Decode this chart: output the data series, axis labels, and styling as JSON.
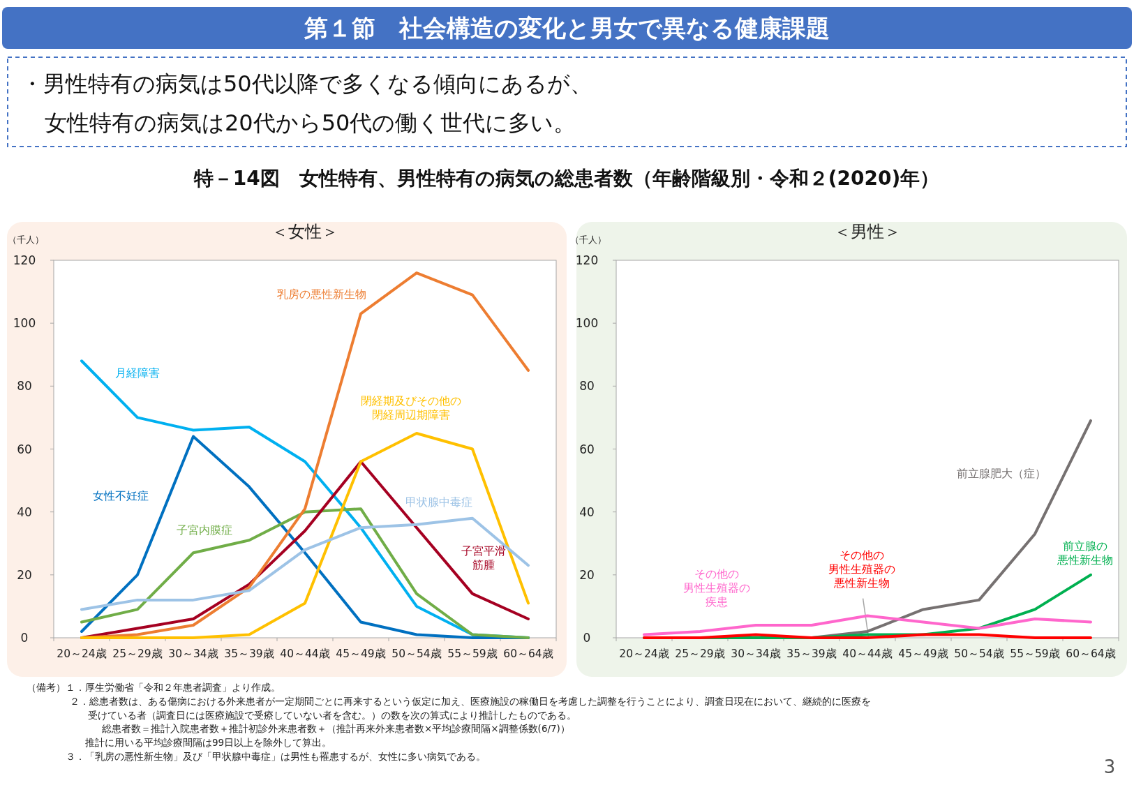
{
  "chart_data": [
    {
      "type": "line",
      "title": "＜女性＞",
      "ylabel": "（千人）",
      "categories": [
        "20～24歳",
        "25～29歳",
        "30～34歳",
        "35～39歳",
        "40～44歳",
        "45～49歳",
        "50～54歳",
        "55～59歳",
        "60～64歳"
      ],
      "ylim": [
        0,
        120
      ],
      "yticks": [
        0,
        20,
        40,
        60,
        80,
        100,
        120
      ],
      "series": [
        {
          "name": "月経障害",
          "color": "#00b0f0",
          "values": [
            88,
            70,
            66,
            67,
            56,
            35,
            10,
            1,
            0
          ]
        },
        {
          "name": "女性不妊症",
          "color": "#0070c0",
          "values": [
            2,
            20,
            64,
            48,
            27,
            5,
            1,
            0,
            0
          ]
        },
        {
          "name": "子宮内膜症",
          "color": "#70ad47",
          "values": [
            5,
            9,
            27,
            31,
            40,
            41,
            14,
            1,
            0
          ]
        },
        {
          "name": "子宮平滑筋腫",
          "color": "#a50021",
          "values": [
            0,
            3,
            6,
            17,
            34,
            56,
            35,
            14,
            6
          ]
        },
        {
          "name": "乳房の悪性新生物",
          "color": "#ed7d31",
          "values": [
            0,
            1,
            4,
            16,
            41,
            103,
            116,
            109,
            85
          ]
        },
        {
          "name": "閉経期及びその他の閉経周辺期障害",
          "color": "#ffc000",
          "values": [
            0,
            0,
            0,
            1,
            11,
            56,
            65,
            60,
            11
          ]
        },
        {
          "name": "甲状腺中毒症",
          "color": "#9dc3e6",
          "values": [
            9,
            12,
            12,
            15,
            28,
            35,
            36,
            38,
            23
          ]
        }
      ],
      "annotations": [
        "第１節　社会構造の変化と男女で異なる健康課題",
        "・男性特有の病気は50代以降で多くなる傾向にあるが、",
        "女性特有の病気は20代から50代の働く世代に多い。",
        "特－14図　女性特有、男性特有の病気の総患者数（年齢階級別・令和２(2020)年）"
      ]
    },
    {
      "type": "line",
      "title": "＜男性＞",
      "ylabel": "（千人）",
      "categories": [
        "20～24歳",
        "25～29歳",
        "30～34歳",
        "35～39歳",
        "40～44歳",
        "45～49歳",
        "50～54歳",
        "55～59歳",
        "60～64歳"
      ],
      "ylim": [
        0,
        120
      ],
      "yticks": [
        0,
        20,
        40,
        60,
        80,
        100,
        120
      ],
      "series": [
        {
          "name": "前立腺肥大（症）",
          "color": "#767171",
          "values": [
            null,
            null,
            0,
            0,
            2,
            9,
            12,
            33,
            69
          ]
        },
        {
          "name": "前立腺の悪性新生物",
          "color": "#00b050",
          "values": [
            0,
            0,
            0,
            0,
            1,
            1,
            3,
            9,
            20
          ]
        },
        {
          "name": "その他の男性生殖器の悪性新生物",
          "color": "#ff0000",
          "values": [
            0,
            0,
            1,
            0,
            0,
            1,
            1,
            0,
            0
          ]
        },
        {
          "name": "その他の男性生殖器の疾患",
          "color": "#ff66cc",
          "values": [
            1,
            2,
            4,
            4,
            7,
            5,
            3,
            6,
            5
          ]
        }
      ],
      "annotations": [
        "（備考）１．厚生労働省「令和２年患者調査」より作成。",
        "２．総患者数は、ある傷病における外来患者が一定期間ごとに再来するという仮定に加え、医療施設の稼働日を考慮した調整を行うことにより、調査日現在において、継続的に医療を",
        "受けている者（調査日には医療施設で受療していない者を含む。）の数を次の算式により推計したものである。",
        "総患者数＝推計入院患者数＋推計初診外来患者数＋（推計再来外来患者数×平均診療間隔×調整係数(6/7)）",
        "推計に用いる平均診療間隔は99日以上を除外して算出。",
        "３．「乳房の悪性新生物」及び「甲状腺中毒症」は男性も罹患するが、女性に多い病気である。",
        "3"
      ]
    }
  ]
}
